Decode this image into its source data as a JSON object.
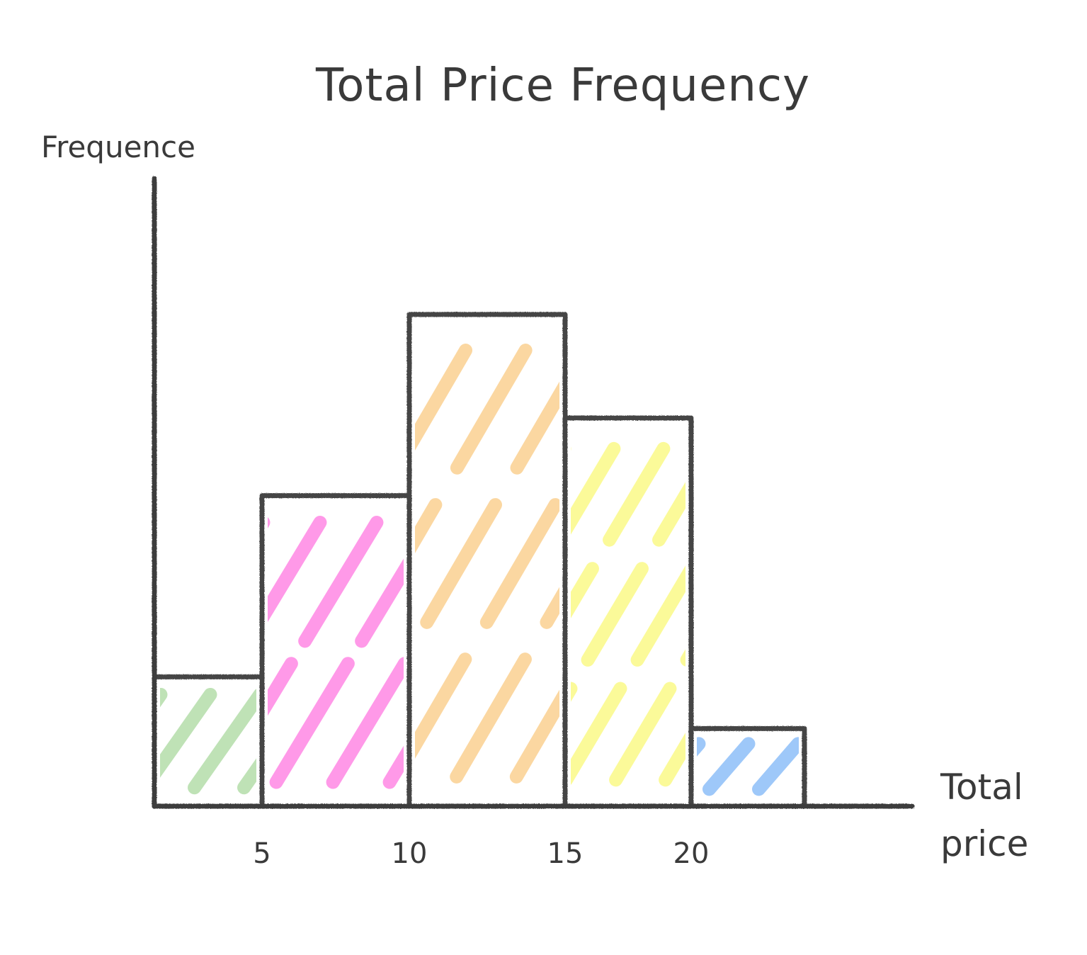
{
  "chart_data": {
    "type": "bar",
    "title": "Total Price Frequency",
    "xlabel": "Total price",
    "ylabel": "Frequence",
    "bins": [
      {
        "start": 0,
        "end": 5,
        "value": 1,
        "color": "#b8dfae"
      },
      {
        "start": 5,
        "end": 10,
        "value": 2.4,
        "color": "#ff8ee6"
      },
      {
        "start": 10,
        "end": 15,
        "value": 3.8,
        "color": "#fbd397"
      },
      {
        "start": 15,
        "end": 20,
        "value": 3.0,
        "color": "#fbfa8e"
      },
      {
        "start": 20,
        "end": 25,
        "value": 0.6,
        "color": "#94c2f8"
      }
    ],
    "x_ticks": [
      5,
      10,
      15,
      20
    ],
    "y_ticks": [
      1,
      2,
      3,
      4
    ],
    "xlim": [
      0,
      30
    ],
    "ylim": [
      0,
      4.85
    ],
    "grid": false
  }
}
